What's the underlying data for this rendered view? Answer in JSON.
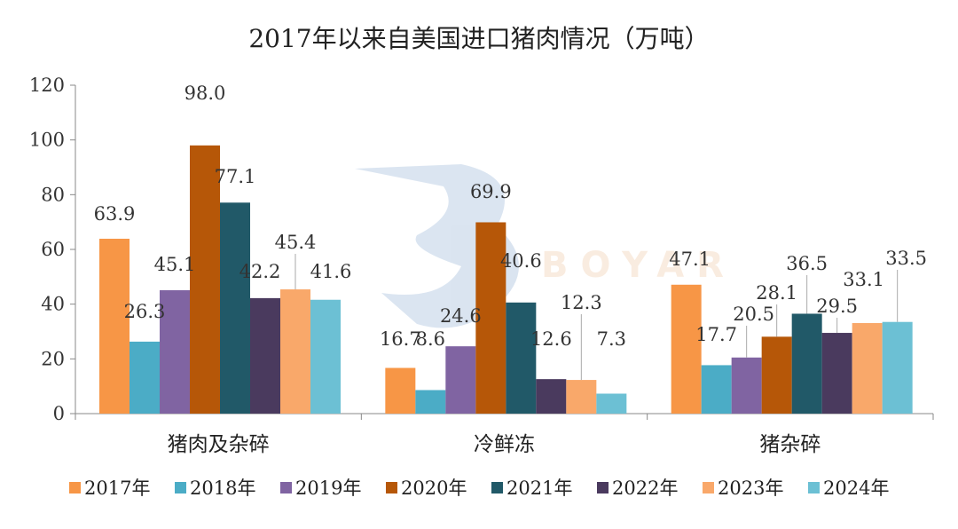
{
  "chart_data": {
    "type": "bar",
    "title": "2017年以来自美国进口猪肉情况（万吨）",
    "categories": [
      "猪肉及杂碎",
      "冷鲜冻",
      "猪杂碎"
    ],
    "ylim": [
      0,
      120
    ],
    "yticks": [
      0,
      20,
      40,
      60,
      80,
      100,
      120
    ],
    "grid": false,
    "legend_position": "bottom",
    "watermark_text": "BOYAR",
    "series": [
      {
        "name": "2017年",
        "color": "#F79646",
        "values": [
          63.9,
          16.7,
          47.1
        ],
        "labels": [
          "63.9",
          "16.7",
          "47.1"
        ]
      },
      {
        "name": "2018年",
        "color": "#4BACC6",
        "values": [
          26.3,
          8.6,
          17.7
        ],
        "labels": [
          "26.3",
          "8.6",
          "17.7"
        ]
      },
      {
        "name": "2019年",
        "color": "#8064A2",
        "values": [
          45.1,
          24.6,
          20.5
        ],
        "labels": [
          "45.1",
          "24.6",
          "20.5"
        ]
      },
      {
        "name": "2020年",
        "color": "#B65708",
        "values": [
          98.0,
          69.9,
          28.1
        ],
        "labels": [
          "98.0",
          "69.9",
          "28.1"
        ]
      },
      {
        "name": "2021年",
        "color": "#215968",
        "values": [
          77.1,
          40.6,
          36.5
        ],
        "labels": [
          "77.1",
          "40.6",
          "36.5"
        ]
      },
      {
        "name": "2022年",
        "color": "#4A3A5E",
        "values": [
          42.2,
          12.6,
          29.5
        ],
        "labels": [
          "42.2",
          "12.6",
          "29.5"
        ]
      },
      {
        "name": "2023年",
        "color": "#F9A86A",
        "values": [
          45.4,
          12.3,
          33.1
        ],
        "labels": [
          "45.4",
          "12.3",
          "33.1"
        ]
      },
      {
        "name": "2024年",
        "color": "#6CC0D4",
        "values": [
          41.6,
          7.3,
          33.5
        ],
        "labels": [
          "41.6",
          "7.3",
          "33.5"
        ]
      }
    ]
  }
}
